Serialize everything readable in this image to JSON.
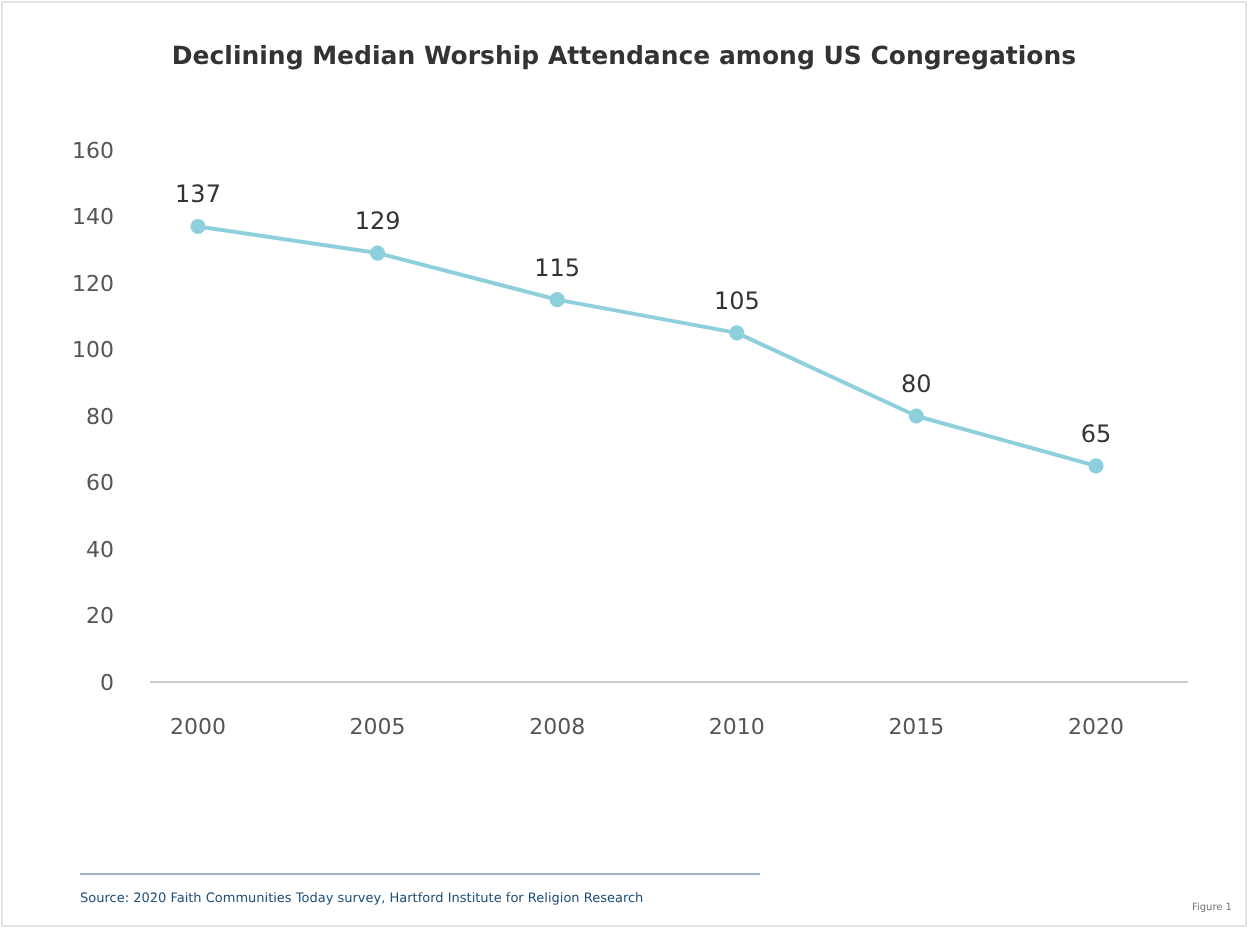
{
  "chart_data": {
    "type": "line",
    "title": "Declining Median Worship Attendance among US Congregations",
    "categories": [
      "2000",
      "2005",
      "2008",
      "2010",
      "2015",
      "2020"
    ],
    "series": [
      {
        "color": "#8ecfdc",
        "values": [
          137,
          129,
          115,
          105,
          80,
          65
        ]
      }
    ],
    "ylim": [
      0,
      160
    ],
    "yticks": [
      0,
      20,
      40,
      60,
      80,
      100,
      120,
      140,
      160
    ],
    "grid": false,
    "marker": "circle",
    "data_labels": true,
    "annotations": [
      "Source: 2020 Faith Communities Today survey, Hartford Institute for Religion Research",
      "Figure 1"
    ]
  }
}
